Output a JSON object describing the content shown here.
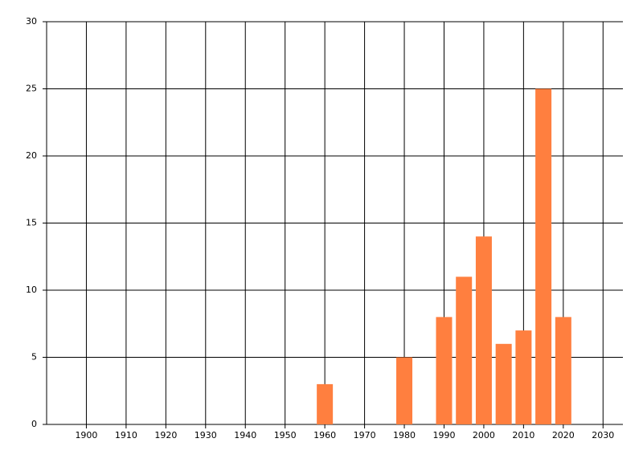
{
  "chart_data": {
    "type": "bar",
    "x": [
      1960,
      1980,
      1990,
      1995,
      2000,
      2005,
      2010,
      2015,
      2020
    ],
    "values": [
      3,
      5,
      8,
      11,
      14,
      6,
      7,
      25,
      8
    ],
    "color": "#ff7f3f",
    "xlim": [
      1890,
      2035
    ],
    "xticks": [
      1900,
      1910,
      1920,
      1930,
      1940,
      1950,
      1960,
      1970,
      1980,
      1990,
      2000,
      2010,
      2020,
      2030
    ],
    "ylim": [
      0,
      30
    ],
    "yticks": [
      0,
      5,
      10,
      15,
      20,
      25,
      30
    ],
    "grid": true
  }
}
